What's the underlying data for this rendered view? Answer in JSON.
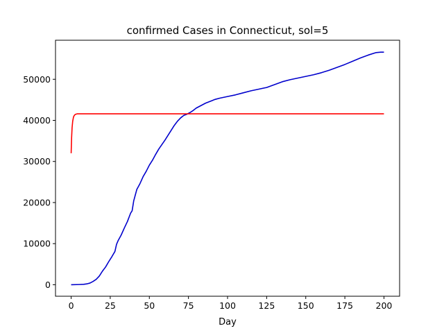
{
  "chart_data": {
    "type": "line",
    "title": "confirmed Cases in Connecticut, sol=5",
    "xlabel": "Day",
    "ylabel": "",
    "xlim": [
      -10,
      210
    ],
    "ylim": [
      -2800,
      59500
    ],
    "xticks": [
      0,
      25,
      50,
      75,
      100,
      125,
      150,
      175,
      200
    ],
    "yticks": [
      0,
      10000,
      20000,
      30000,
      40000,
      50000
    ],
    "grid": false,
    "legend": "none",
    "series": [
      {
        "color": "#0000cc",
        "x": [
          0,
          5,
          8,
          10,
          12,
          14,
          16,
          18,
          20,
          22,
          24,
          26,
          28,
          29,
          30,
          32,
          34,
          36,
          38,
          39,
          40,
          42,
          44,
          46,
          48,
          50,
          52,
          54,
          56,
          58,
          60,
          62,
          64,
          66,
          68,
          70,
          72,
          74,
          76,
          78,
          80,
          82,
          84,
          86,
          88,
          90,
          92,
          95,
          100,
          105,
          110,
          115,
          120,
          125,
          130,
          135,
          140,
          145,
          150,
          155,
          160,
          165,
          170,
          175,
          180,
          185,
          190,
          195,
          198,
          200
        ],
        "y": [
          0,
          50,
          100,
          200,
          400,
          800,
          1300,
          2100,
          3300,
          4300,
          5600,
          6800,
          8100,
          9800,
          10700,
          12100,
          13800,
          15400,
          17400,
          18000,
          20400,
          23200,
          24600,
          26300,
          27600,
          29100,
          30300,
          31700,
          33000,
          34100,
          35200,
          36400,
          37600,
          38800,
          39800,
          40600,
          41200,
          41500,
          41900,
          42400,
          43000,
          43400,
          43800,
          44200,
          44500,
          44800,
          45100,
          45400,
          45800,
          46200,
          46700,
          47200,
          47600,
          48000,
          48700,
          49400,
          49900,
          50300,
          50700,
          51100,
          51600,
          52200,
          52900,
          53600,
          54400,
          55200,
          55900,
          56500,
          56600,
          56600
        ]
      },
      {
        "color": "#ff0000",
        "x": [
          0,
          0.3,
          0.6,
          1,
          1.5,
          2,
          2.5,
          3,
          4,
          5,
          10,
          50,
          100,
          150,
          200
        ],
        "y": [
          32000,
          35800,
          38200,
          39800,
          40800,
          41200,
          41400,
          41500,
          41600,
          41600,
          41600,
          41600,
          41600,
          41600,
          41600
        ]
      }
    ]
  }
}
